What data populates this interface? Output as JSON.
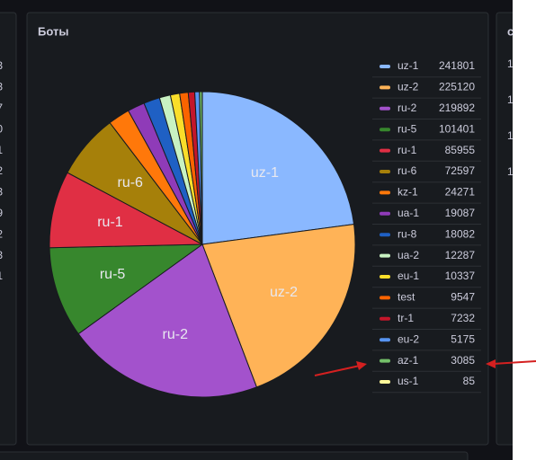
{
  "chart_data": {
    "type": "pie",
    "title": "Боты",
    "categories": [
      "uz-1",
      "uz-2",
      "ru-2",
      "ru-5",
      "ru-1",
      "ru-6",
      "kz-1",
      "ua-1",
      "ru-8",
      "ua-2",
      "eu-1",
      "test",
      "tr-1",
      "eu-2",
      "az-1",
      "us-1"
    ],
    "values": [
      241801,
      225120,
      219892,
      101401,
      85955,
      72597,
      24271,
      19087,
      18082,
      12287,
      10337,
      9547,
      7232,
      5175,
      3085,
      85
    ],
    "colors": [
      "#8ab8ff",
      "#ffb357",
      "#a352cc",
      "#37872d",
      "#e02f44",
      "#a6800a",
      "#ff780a",
      "#8f3bb8",
      "#1f60c4",
      "#c8f2c2",
      "#fade2a",
      "#fa6400",
      "#c4162a",
      "#5794f2",
      "#73bf69",
      "#fff899"
    ],
    "legend": "right"
  },
  "left_panel": {
    "values": [
      "3",
      "3",
      "7",
      "0",
      "1",
      "2",
      "3",
      "9",
      "2",
      "3",
      "1"
    ]
  },
  "right_panel": {
    "title": "c",
    "values": [
      "1",
      "1",
      "1",
      "1"
    ]
  }
}
